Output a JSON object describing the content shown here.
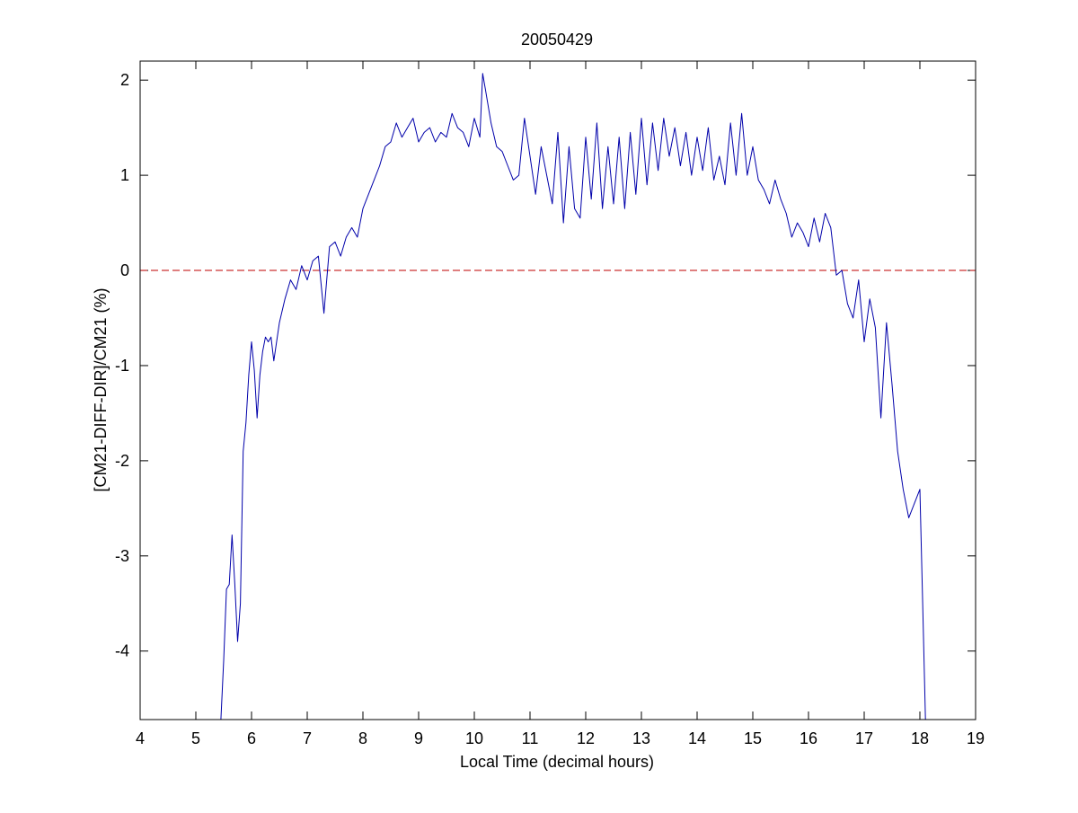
{
  "chart_data": {
    "type": "line",
    "title": "20050429",
    "xlabel": "Local Time (decimal hours)",
    "ylabel": "[CM21-DIFF-DIR]/CM21 (%)",
    "xlim": [
      4,
      19
    ],
    "ylim": [
      -4.72,
      2.2
    ],
    "xticks": [
      4,
      5,
      6,
      7,
      8,
      9,
      10,
      11,
      12,
      13,
      14,
      15,
      16,
      17,
      18,
      19
    ],
    "yticks": [
      2,
      1,
      0,
      -1,
      -2,
      -3,
      -4
    ],
    "xtick_labels": [
      "4",
      "5",
      "6",
      "7",
      "8",
      "9",
      "10",
      "11",
      "12",
      "13",
      "14",
      "15",
      "16",
      "17",
      "18",
      "19"
    ],
    "ytick_labels": [
      "2",
      "1",
      "0",
      "-1",
      "-2",
      "-3",
      "-4"
    ],
    "grid": false,
    "reference_line": {
      "y": 0,
      "color": "#cc3333",
      "style": "dashed"
    },
    "series": [
      {
        "color": "#0000aa",
        "x": [
          5.45,
          5.5,
          5.55,
          5.6,
          5.65,
          5.7,
          5.75,
          5.8,
          5.85,
          5.9,
          5.95,
          6.0,
          6.05,
          6.1,
          6.15,
          6.2,
          6.25,
          6.3,
          6.35,
          6.4,
          6.5,
          6.6,
          6.7,
          6.8,
          6.9,
          7.0,
          7.1,
          7.2,
          7.3,
          7.4,
          7.5,
          7.6,
          7.7,
          7.8,
          7.9,
          8.0,
          8.1,
          8.2,
          8.3,
          8.4,
          8.5,
          8.6,
          8.7,
          8.8,
          8.9,
          9.0,
          9.1,
          9.2,
          9.3,
          9.4,
          9.5,
          9.6,
          9.7,
          9.8,
          9.9,
          10.0,
          10.1,
          10.15,
          10.2,
          10.3,
          10.4,
          10.5,
          10.6,
          10.7,
          10.8,
          10.9,
          11.0,
          11.1,
          11.2,
          11.3,
          11.4,
          11.5,
          11.6,
          11.7,
          11.8,
          11.9,
          12.0,
          12.1,
          12.2,
          12.3,
          12.4,
          12.5,
          12.6,
          12.7,
          12.8,
          12.9,
          13.0,
          13.1,
          13.2,
          13.3,
          13.4,
          13.5,
          13.6,
          13.7,
          13.8,
          13.9,
          14.0,
          14.1,
          14.2,
          14.3,
          14.4,
          14.5,
          14.6,
          14.7,
          14.8,
          14.9,
          15.0,
          15.1,
          15.2,
          15.3,
          15.4,
          15.5,
          15.6,
          15.7,
          15.8,
          15.9,
          16.0,
          16.1,
          16.2,
          16.3,
          16.4,
          16.5,
          16.6,
          16.7,
          16.8,
          16.9,
          17.0,
          17.1,
          17.2,
          17.3,
          17.4,
          17.5,
          17.6,
          17.7,
          17.8,
          17.9,
          18.0,
          18.05,
          18.1
        ],
        "y": [
          -4.72,
          -4.1,
          -3.35,
          -3.3,
          -2.78,
          -3.3,
          -3.9,
          -3.5,
          -1.9,
          -1.6,
          -1.1,
          -0.75,
          -1.05,
          -1.55,
          -1.1,
          -0.85,
          -0.7,
          -0.75,
          -0.7,
          -0.95,
          -0.55,
          -0.3,
          -0.1,
          -0.2,
          0.05,
          -0.1,
          0.1,
          0.15,
          -0.45,
          0.25,
          0.3,
          0.15,
          0.35,
          0.45,
          0.35,
          0.65,
          0.8,
          0.95,
          1.1,
          1.3,
          1.35,
          1.55,
          1.4,
          1.5,
          1.6,
          1.35,
          1.45,
          1.5,
          1.35,
          1.45,
          1.4,
          1.65,
          1.5,
          1.45,
          1.3,
          1.6,
          1.4,
          2.07,
          1.9,
          1.55,
          1.3,
          1.25,
          1.1,
          0.95,
          1.0,
          1.6,
          1.2,
          0.8,
          1.3,
          1.0,
          0.7,
          1.45,
          0.5,
          1.3,
          0.65,
          0.55,
          1.4,
          0.75,
          1.55,
          0.65,
          1.3,
          0.7,
          1.4,
          0.65,
          1.45,
          0.8,
          1.6,
          0.9,
          1.55,
          1.05,
          1.6,
          1.2,
          1.5,
          1.1,
          1.45,
          1.0,
          1.4,
          1.05,
          1.5,
          0.95,
          1.2,
          0.9,
          1.55,
          1.0,
          1.65,
          1.0,
          1.3,
          0.95,
          0.85,
          0.7,
          0.95,
          0.75,
          0.6,
          0.35,
          0.5,
          0.4,
          0.25,
          0.55,
          0.3,
          0.6,
          0.45,
          -0.05,
          0.0,
          -0.35,
          -0.5,
          -0.1,
          -0.75,
          -0.3,
          -0.6,
          -1.55,
          -0.55,
          -1.2,
          -1.9,
          -2.3,
          -2.6,
          -2.45,
          -2.3,
          -3.5,
          -4.72
        ]
      }
    ]
  }
}
